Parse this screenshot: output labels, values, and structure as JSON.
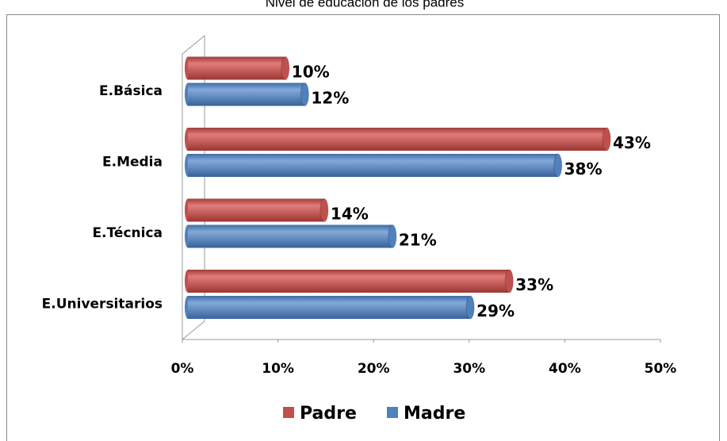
{
  "chart_data": {
    "type": "bar",
    "orientation": "horizontal",
    "title": "Nivel de educación de los padres",
    "categories": [
      "E.Básica",
      "E.Media",
      "E.Técnica",
      "E.Universitarios"
    ],
    "series": [
      {
        "name": "Padre",
        "color": "#c0504d",
        "values": [
          10,
          43,
          14,
          33
        ],
        "value_labels": [
          "10%",
          "43%",
          "14%",
          "33%"
        ]
      },
      {
        "name": "Madre",
        "color": "#4f81bd",
        "values": [
          12,
          38,
          21,
          29
        ],
        "value_labels": [
          "12%",
          "38%",
          "21%",
          "29%"
        ]
      }
    ],
    "xlim": [
      0,
      50
    ],
    "xticks": [
      {
        "value": 0,
        "label": "0%"
      },
      {
        "value": 10,
        "label": "10%"
      },
      {
        "value": 20,
        "label": "20%"
      },
      {
        "value": 30,
        "label": "30%"
      },
      {
        "value": 40,
        "label": "40%"
      },
      {
        "value": 50,
        "label": "50%"
      }
    ],
    "legend": "bottom"
  }
}
